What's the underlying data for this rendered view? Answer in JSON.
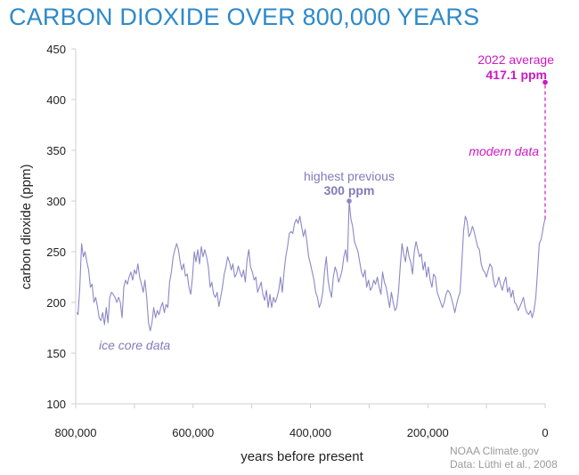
{
  "chart_data": {
    "type": "line",
    "title": "CARBON DIOXIDE OVER 800,000 YEARS",
    "xlabel": "years before present",
    "ylabel": "carbon dioxide (ppm)",
    "xlim": [
      800000,
      0
    ],
    "ylim": [
      100,
      450
    ],
    "x_ticks": [
      {
        "value": 800000,
        "label": "800,000"
      },
      {
        "value": 600000,
        "label": "600,000"
      },
      {
        "value": 400000,
        "label": "400,000"
      },
      {
        "value": 200000,
        "label": "200,000"
      },
      {
        "value": 0,
        "label": "0"
      }
    ],
    "y_ticks": [
      {
        "value": 450,
        "label": "450"
      },
      {
        "value": 400,
        "label": "400"
      },
      {
        "value": 350,
        "label": "350"
      },
      {
        "value": 300,
        "label": "300"
      },
      {
        "value": 250,
        "label": "250"
      },
      {
        "value": 200,
        "label": "200"
      },
      {
        "value": 150,
        "label": "150"
      },
      {
        "value": 100,
        "label": "100"
      }
    ],
    "grid": false,
    "series": [
      {
        "color": "#8c88c6",
        "points": [
          [
            798000,
            190
          ],
          [
            796000,
            188
          ],
          [
            793000,
            215
          ],
          [
            790000,
            258
          ],
          [
            787000,
            245
          ],
          [
            784000,
            250
          ],
          [
            781000,
            240
          ],
          [
            778000,
            232
          ],
          [
            775000,
            215
          ],
          [
            772000,
            218
          ],
          [
            769000,
            200
          ],
          [
            766000,
            205
          ],
          [
            763000,
            196
          ],
          [
            760000,
            185
          ],
          [
            757000,
            182
          ],
          [
            754000,
            190
          ],
          [
            751000,
            178
          ],
          [
            748000,
            195
          ],
          [
            745000,
            180
          ],
          [
            742000,
            205
          ],
          [
            739000,
            210
          ],
          [
            736000,
            208
          ],
          [
            733000,
            205
          ],
          [
            730000,
            200
          ],
          [
            727000,
            205
          ],
          [
            724000,
            200
          ],
          [
            721000,
            185
          ],
          [
            718000,
            215
          ],
          [
            715000,
            222
          ],
          [
            712000,
            218
          ],
          [
            709000,
            225
          ],
          [
            706000,
            230
          ],
          [
            703000,
            222
          ],
          [
            700000,
            232
          ],
          [
            697000,
            228
          ],
          [
            694000,
            238
          ],
          [
            691000,
            225
          ],
          [
            688000,
            218
          ],
          [
            685000,
            210
          ],
          [
            682000,
            222
          ],
          [
            679000,
            205
          ],
          [
            676000,
            180
          ],
          [
            673000,
            172
          ],
          [
            670000,
            180
          ],
          [
            667000,
            195
          ],
          [
            664000,
            185
          ],
          [
            661000,
            192
          ],
          [
            658000,
            188
          ],
          [
            655000,
            195
          ],
          [
            652000,
            200
          ],
          [
            649000,
            190
          ],
          [
            646000,
            198
          ],
          [
            643000,
            195
          ],
          [
            640000,
            220
          ],
          [
            637000,
            230
          ],
          [
            634000,
            245
          ],
          [
            631000,
            252
          ],
          [
            628000,
            258
          ],
          [
            625000,
            252
          ],
          [
            622000,
            240
          ],
          [
            619000,
            232
          ],
          [
            616000,
            238
          ],
          [
            613000,
            226
          ],
          [
            610000,
            228
          ],
          [
            607000,
            215
          ],
          [
            604000,
            208
          ],
          [
            601000,
            225
          ],
          [
            598000,
            250
          ],
          [
            595000,
            240
          ],
          [
            592000,
            252
          ],
          [
            589000,
            238
          ],
          [
            586000,
            255
          ],
          [
            583000,
            245
          ],
          [
            580000,
            252
          ],
          [
            577000,
            245
          ],
          [
            574000,
            235
          ],
          [
            571000,
            215
          ],
          [
            568000,
            220
          ],
          [
            565000,
            208
          ],
          [
            562000,
            205
          ],
          [
            559000,
            210
          ],
          [
            556000,
            196
          ],
          [
            553000,
            205
          ],
          [
            550000,
            215
          ],
          [
            547000,
            228
          ],
          [
            544000,
            235
          ],
          [
            541000,
            245
          ],
          [
            538000,
            240
          ],
          [
            535000,
            232
          ],
          [
            532000,
            238
          ],
          [
            529000,
            225
          ],
          [
            526000,
            228
          ],
          [
            523000,
            236
          ],
          [
            520000,
            230
          ],
          [
            517000,
            225
          ],
          [
            514000,
            232
          ],
          [
            511000,
            220
          ],
          [
            508000,
            242
          ],
          [
            505000,
            252
          ],
          [
            502000,
            235
          ],
          [
            499000,
            230
          ],
          [
            496000,
            222
          ],
          [
            493000,
            225
          ],
          [
            490000,
            210
          ],
          [
            487000,
            215
          ],
          [
            484000,
            220
          ],
          [
            481000,
            208
          ],
          [
            478000,
            202
          ],
          [
            475000,
            212
          ],
          [
            472000,
            195
          ],
          [
            469000,
            208
          ],
          [
            466000,
            195
          ],
          [
            463000,
            205
          ],
          [
            460000,
            200
          ],
          [
            457000,
            205
          ],
          [
            454000,
            212
          ],
          [
            451000,
            225
          ],
          [
            448000,
            210
          ],
          [
            445000,
            230
          ],
          [
            442000,
            245
          ],
          [
            439000,
            255
          ],
          [
            436000,
            268
          ],
          [
            433000,
            270
          ],
          [
            430000,
            268
          ],
          [
            427000,
            278
          ],
          [
            424000,
            282
          ],
          [
            421000,
            278
          ],
          [
            418000,
            285
          ],
          [
            415000,
            275
          ],
          [
            412000,
            265
          ],
          [
            409000,
            272
          ],
          [
            406000,
            260
          ],
          [
            403000,
            245
          ],
          [
            400000,
            238
          ],
          [
            397000,
            230
          ],
          [
            394000,
            222
          ],
          [
            391000,
            210
          ],
          [
            388000,
            205
          ],
          [
            385000,
            195
          ],
          [
            382000,
            200
          ],
          [
            379000,
            210
          ],
          [
            376000,
            230
          ],
          [
            373000,
            245
          ],
          [
            370000,
            222
          ],
          [
            367000,
            212
          ],
          [
            364000,
            205
          ],
          [
            361000,
            225
          ],
          [
            358000,
            235
          ],
          [
            355000,
            230
          ],
          [
            352000,
            220
          ],
          [
            349000,
            225
          ],
          [
            346000,
            232
          ],
          [
            343000,
            245
          ],
          [
            340000,
            252
          ],
          [
            337000,
            240
          ],
          [
            334000,
            300
          ],
          [
            331000,
            282
          ],
          [
            328000,
            275
          ],
          [
            325000,
            260
          ],
          [
            322000,
            255
          ],
          [
            319000,
            250
          ],
          [
            316000,
            240
          ],
          [
            313000,
            230
          ],
          [
            310000,
            225
          ],
          [
            307000,
            232
          ],
          [
            304000,
            215
          ],
          [
            301000,
            222
          ],
          [
            298000,
            212
          ],
          [
            295000,
            215
          ],
          [
            292000,
            222
          ],
          [
            289000,
            218
          ],
          [
            286000,
            225
          ],
          [
            283000,
            215
          ],
          [
            280000,
            208
          ],
          [
            277000,
            230
          ],
          [
            274000,
            220
          ],
          [
            271000,
            215
          ],
          [
            268000,
            205
          ],
          [
            265000,
            195
          ],
          [
            262000,
            210
          ],
          [
            259000,
            200
          ],
          [
            256000,
            192
          ],
          [
            253000,
            195
          ],
          [
            250000,
            210
          ],
          [
            247000,
            235
          ],
          [
            244000,
            258
          ],
          [
            241000,
            248
          ],
          [
            238000,
            240
          ],
          [
            235000,
            255
          ],
          [
            232000,
            245
          ],
          [
            229000,
            240
          ],
          [
            226000,
            228
          ],
          [
            223000,
            250
          ],
          [
            220000,
            260
          ],
          [
            217000,
            252
          ],
          [
            214000,
            245
          ],
          [
            211000,
            248
          ],
          [
            208000,
            232
          ],
          [
            205000,
            240
          ],
          [
            202000,
            225
          ],
          [
            199000,
            235
          ],
          [
            196000,
            222
          ],
          [
            193000,
            215
          ],
          [
            190000,
            228
          ],
          [
            187000,
            225
          ],
          [
            184000,
            210
          ],
          [
            181000,
            205
          ],
          [
            178000,
            200
          ],
          [
            175000,
            195
          ],
          [
            172000,
            200
          ],
          [
            169000,
            208
          ],
          [
            166000,
            212
          ],
          [
            163000,
            210
          ],
          [
            160000,
            205
          ],
          [
            157000,
            198
          ],
          [
            154000,
            190
          ],
          [
            151000,
            198
          ],
          [
            148000,
            205
          ],
          [
            145000,
            210
          ],
          [
            142000,
            240
          ],
          [
            139000,
            270
          ],
          [
            136000,
            285
          ],
          [
            133000,
            280
          ],
          [
            130000,
            265
          ],
          [
            127000,
            268
          ],
          [
            124000,
            275
          ],
          [
            121000,
            270
          ],
          [
            118000,
            262
          ],
          [
            115000,
            255
          ],
          [
            112000,
            252
          ],
          [
            109000,
            238
          ],
          [
            106000,
            232
          ],
          [
            103000,
            230
          ],
          [
            100000,
            225
          ],
          [
            97000,
            232
          ],
          [
            94000,
            238
          ],
          [
            91000,
            235
          ],
          [
            88000,
            222
          ],
          [
            85000,
            215
          ],
          [
            82000,
            218
          ],
          [
            79000,
            225
          ],
          [
            76000,
            218
          ],
          [
            73000,
            212
          ],
          [
            70000,
            220
          ],
          [
            67000,
            225
          ],
          [
            64000,
            210
          ],
          [
            61000,
            215
          ],
          [
            58000,
            205
          ],
          [
            55000,
            212
          ],
          [
            52000,
            200
          ],
          [
            49000,
            198
          ],
          [
            46000,
            192
          ],
          [
            43000,
            196
          ],
          [
            40000,
            200
          ],
          [
            37000,
            205
          ],
          [
            34000,
            195
          ],
          [
            31000,
            190
          ],
          [
            28000,
            188
          ],
          [
            25000,
            192
          ],
          [
            22000,
            185
          ],
          [
            19000,
            192
          ],
          [
            16000,
            205
          ],
          [
            13000,
            230
          ],
          [
            10000,
            258
          ],
          [
            7000,
            262
          ],
          [
            5000,
            268
          ],
          [
            3000,
            275
          ],
          [
            2000,
            278
          ],
          [
            1000,
            280
          ],
          [
            300,
            282
          ]
        ]
      }
    ],
    "markers": [
      {
        "x": 334000,
        "y": 300,
        "color": "#8c88c6"
      },
      {
        "x": 0,
        "y": 417.1,
        "color": "#cc19c4"
      }
    ],
    "annotations": {
      "highest_previous": {
        "line1": "highest previous",
        "line2": "300 ppm"
      },
      "average_2022": {
        "line1": "2022 average",
        "line2": "417.1 ppm"
      },
      "modern_data": "modern data",
      "ice_core_data": "ice core data"
    },
    "colors": {
      "title": "#2d8ac9",
      "ice_core_line": "#8c88c6",
      "modern": "#cc19c4"
    }
  },
  "credits": {
    "source": "NOAA Climate.gov",
    "data": "Data: Lüthi et al., 2008"
  }
}
